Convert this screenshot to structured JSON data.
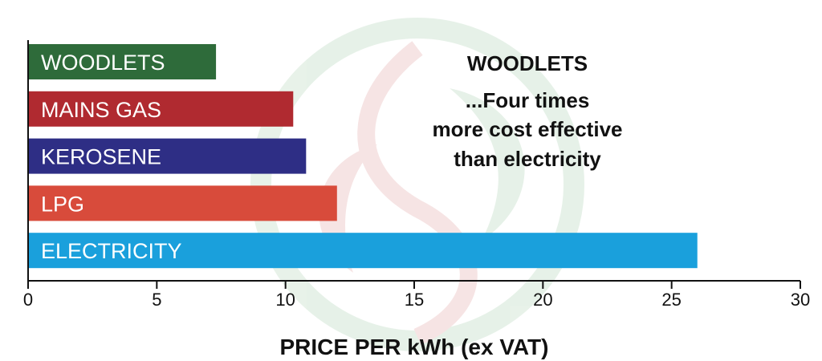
{
  "chart_data": {
    "type": "bar",
    "orientation": "horizontal",
    "categories": [
      "WOODLETS",
      "MAINS GAS",
      "KEROSENE",
      "LPG",
      "ELECTRICITY"
    ],
    "values": [
      7.3,
      10.3,
      10.8,
      12.0,
      26.0
    ],
    "colors": [
      "#2e6b3a",
      "#b02a30",
      "#2e2e85",
      "#d84b3b",
      "#1aa0dc"
    ],
    "xlabel": "PRICE PER kWh (ex VAT)",
    "xlim": [
      0,
      30
    ],
    "xticks": [
      "0",
      "5",
      "10",
      "15",
      "20",
      "25",
      "30"
    ],
    "annotation": [
      "WOODLETS",
      "...Four times",
      "more cost effective",
      "than electricity"
    ],
    "grid": false,
    "watermark": "leaf-logo-watermark"
  }
}
